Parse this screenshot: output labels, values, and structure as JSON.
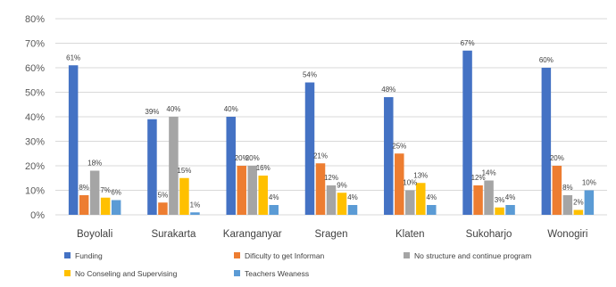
{
  "chart_data": {
    "type": "bar",
    "title": "",
    "xlabel": "",
    "ylabel": "",
    "ylim": [
      0,
      80
    ],
    "yticks": [
      "0%",
      "10%",
      "20%",
      "30%",
      "40%",
      "50%",
      "60%",
      "70%",
      "80%"
    ],
    "grid": true,
    "legend_position": "bottom",
    "categories": [
      "Boyolali",
      "Surakarta",
      "Karanganyar",
      "Sragen",
      "Klaten",
      "Sukoharjo",
      "Wonogiri"
    ],
    "series": [
      {
        "name": "Funding",
        "color": "#4472c4",
        "values": [
          61,
          39,
          40,
          54,
          48,
          67,
          60
        ],
        "labels": [
          "61%",
          "39%",
          "40%",
          "54%",
          "48%",
          "67%",
          "60%"
        ]
      },
      {
        "name": "Dificulty to get Informan",
        "color": "#ed7d31",
        "values": [
          8,
          5,
          20,
          21,
          25,
          12,
          20
        ],
        "labels": [
          "8%",
          "5%",
          "20%",
          "21%",
          "25%",
          "12%",
          "20%"
        ]
      },
      {
        "name": "No structure and continue program",
        "color": "#a5a5a5",
        "values": [
          18,
          40,
          20,
          12,
          10,
          14,
          8
        ],
        "labels": [
          "18%",
          "40%",
          "20%",
          "12%",
          "10%",
          "14%",
          "8%"
        ]
      },
      {
        "name": "No Conseling and Supervising",
        "color": "#ffc000",
        "values": [
          7,
          15,
          16,
          9,
          13,
          3,
          2
        ],
        "labels": [
          "7%",
          "15%",
          "16%",
          "9%",
          "13%",
          "3%",
          "2%"
        ]
      },
      {
        "name": "Teachers Weaness",
        "color": "#5b9bd5",
        "values": [
          6,
          1,
          4,
          4,
          4,
          4,
          10
        ],
        "labels": [
          "6%",
          "1%",
          "4%",
          "4%",
          "4%",
          "4%",
          "10%"
        ]
      }
    ]
  }
}
